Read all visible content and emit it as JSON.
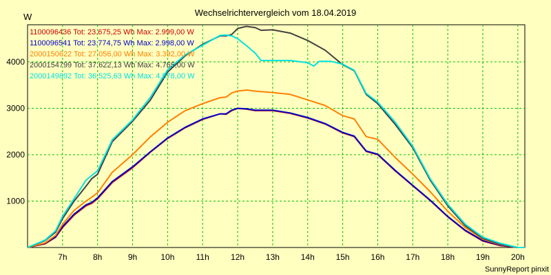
{
  "chart_data": {
    "type": "line",
    "title": "Wechselrichtervergleich vom 18.04.2019",
    "ylabel": "W",
    "footer": "SunnyReport pinxit",
    "xlim": [
      6.0,
      20.2
    ],
    "ylim": [
      0,
      4800
    ],
    "x_ticks": [
      {
        "value": 7,
        "label": "7h"
      },
      {
        "value": 8,
        "label": "8h"
      },
      {
        "value": 9,
        "label": "9h"
      },
      {
        "value": 10,
        "label": "10h"
      },
      {
        "value": 11,
        "label": "11h"
      },
      {
        "value": 12,
        "label": "12h"
      },
      {
        "value": 13,
        "label": "13h"
      },
      {
        "value": 14,
        "label": "14h"
      },
      {
        "value": 15,
        "label": "15h"
      },
      {
        "value": 16,
        "label": "16h"
      },
      {
        "value": 17,
        "label": "17h"
      },
      {
        "value": 18,
        "label": "18h"
      },
      {
        "value": 19,
        "label": "19h"
      },
      {
        "value": 20,
        "label": "20h"
      }
    ],
    "y_ticks": [
      {
        "value": 1000,
        "label": "1000"
      },
      {
        "value": 2000,
        "label": "2000"
      },
      {
        "value": 3000,
        "label": "3000"
      },
      {
        "value": 4000,
        "label": "4000"
      }
    ],
    "grid": true,
    "legend_position": "top-left",
    "background_color": "#ffffc0",
    "grid_color": "#00c000",
    "series": [
      {
        "name": "1100096436 Tot: 23.675,25 Wh Max: 2.999,00 W",
        "color": "#cc0000",
        "x": [
          6.0,
          6.5,
          6.8,
          7.0,
          7.33,
          7.67,
          7.83,
          8.0,
          8.42,
          9.0,
          9.5,
          10.0,
          10.5,
          11.0,
          11.5,
          11.67,
          11.83,
          12.0,
          12.25,
          12.5,
          13.0,
          13.5,
          14.0,
          14.5,
          15.0,
          15.33,
          15.67,
          16.0,
          16.5,
          17.0,
          17.5,
          18.0,
          18.5,
          19.0,
          19.5,
          20.0,
          20.2
        ],
        "y": [
          0,
          80,
          220,
          430,
          700,
          900,
          950,
          1050,
          1400,
          1720,
          2050,
          2350,
          2580,
          2760,
          2880,
          2870,
          2950,
          2999,
          2980,
          2950,
          2950,
          2890,
          2790,
          2660,
          2470,
          2390,
          2070,
          2000,
          1650,
          1330,
          1010,
          660,
          360,
          140,
          40,
          0,
          0
        ]
      },
      {
        "name": "1100096541 Tot: 23.774,75 Wh Max: 2.998,00 W",
        "color": "#0000cc",
        "x": [
          6.0,
          6.5,
          6.8,
          7.0,
          7.33,
          7.67,
          7.83,
          8.0,
          8.42,
          9.0,
          9.5,
          10.0,
          10.5,
          11.0,
          11.5,
          11.67,
          11.83,
          12.0,
          12.25,
          12.5,
          13.0,
          13.5,
          14.0,
          14.5,
          15.0,
          15.33,
          15.67,
          16.0,
          16.5,
          17.0,
          17.5,
          18.0,
          18.5,
          19.0,
          19.5,
          20.0,
          20.2
        ],
        "y": [
          0,
          90,
          230,
          450,
          720,
          920,
          970,
          1070,
          1420,
          1740,
          2060,
          2360,
          2590,
          2770,
          2880,
          2880,
          2960,
          2998,
          2990,
          2960,
          2960,
          2900,
          2800,
          2670,
          2480,
          2400,
          2080,
          2010,
          1660,
          1340,
          1020,
          670,
          370,
          150,
          50,
          0,
          0
        ]
      },
      {
        "name": "2000150622 Tot: 27.056,00 Wh Max: 3.392,00 W",
        "color": "#ff8000",
        "x": [
          6.0,
          6.5,
          6.8,
          7.0,
          7.33,
          7.67,
          7.83,
          8.0,
          8.42,
          9.0,
          9.5,
          10.0,
          10.5,
          11.0,
          11.5,
          11.67,
          11.83,
          12.0,
          12.25,
          12.5,
          13.0,
          13.5,
          14.0,
          14.5,
          15.0,
          15.33,
          15.67,
          16.0,
          16.5,
          17.0,
          17.5,
          18.0,
          18.5,
          19.0,
          19.5,
          20.0,
          20.2
        ],
        "y": [
          0,
          100,
          260,
          500,
          800,
          1000,
          1080,
          1180,
          1620,
          2000,
          2380,
          2700,
          2950,
          3100,
          3230,
          3240,
          3330,
          3370,
          3392,
          3370,
          3340,
          3300,
          3180,
          3060,
          2840,
          2770,
          2390,
          2330,
          1940,
          1580,
          1200,
          780,
          430,
          180,
          60,
          0,
          0
        ]
      },
      {
        "name": "2000154799 Tot: 37.622,13 Wh Max: 4.765,00 W",
        "color": "#404040",
        "x": [
          6.0,
          6.5,
          6.8,
          7.0,
          7.33,
          7.67,
          7.83,
          8.0,
          8.42,
          9.0,
          9.5,
          10.0,
          10.5,
          11.0,
          11.5,
          11.67,
          11.83,
          12.0,
          12.25,
          12.5,
          12.67,
          13.0,
          13.5,
          14.0,
          14.5,
          15.0,
          15.33,
          15.67,
          16.0,
          16.5,
          17.0,
          17.5,
          18.0,
          18.5,
          19.0,
          19.5,
          20.0,
          20.2
        ],
        "y": [
          0,
          150,
          330,
          620,
          1000,
          1320,
          1480,
          1580,
          2280,
          2720,
          3170,
          3780,
          4130,
          4380,
          4560,
          4560,
          4590,
          4720,
          4765,
          4740,
          4680,
          4690,
          4620,
          4460,
          4250,
          3940,
          3810,
          3300,
          3100,
          2650,
          2150,
          1450,
          900,
          470,
          200,
          70,
          0,
          0
        ]
      },
      {
        "name": "2000149892 Tot: 36.525,63 Wh Max: 4.578,00 W",
        "color": "#00e0e0",
        "x": [
          6.0,
          6.5,
          6.8,
          7.0,
          7.33,
          7.67,
          7.83,
          8.0,
          8.42,
          9.0,
          9.5,
          10.0,
          10.5,
          11.0,
          11.5,
          11.67,
          11.83,
          12.0,
          12.25,
          12.5,
          12.67,
          13.0,
          13.5,
          14.0,
          14.17,
          14.33,
          14.67,
          15.0,
          15.33,
          15.67,
          16.0,
          16.5,
          17.0,
          17.5,
          18.0,
          18.5,
          19.0,
          19.5,
          20.0,
          20.2
        ],
        "y": [
          0,
          160,
          360,
          670,
          1050,
          1450,
          1550,
          1650,
          2320,
          2750,
          3230,
          3830,
          4150,
          4360,
          4570,
          4578,
          4560,
          4500,
          4350,
          4190,
          4030,
          4030,
          4030,
          3980,
          3910,
          4010,
          4010,
          3950,
          3820,
          3320,
          3130,
          2700,
          2180,
          1480,
          930,
          500,
          220,
          90,
          0,
          0
        ]
      }
    ]
  }
}
